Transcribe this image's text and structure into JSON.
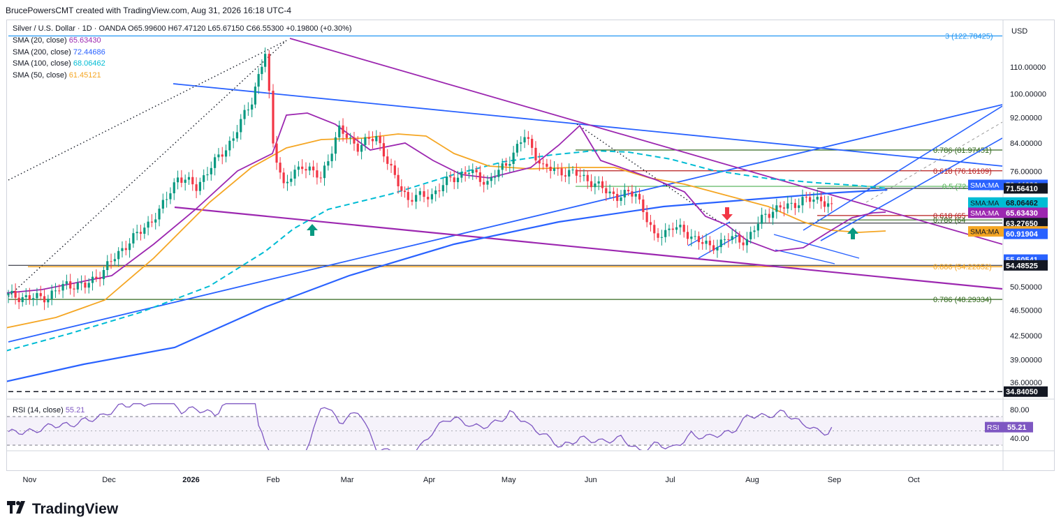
{
  "header": {
    "attribution": "BrucePowersCMT created with TradingView.com, Aug 31, 2026 16:18 UTC-4"
  },
  "legend": {
    "symbol": "Silver / U.S. Dollar · 1D · OANDA",
    "ohlc": "O65.99600 H67.47120 L65.67150 C66.55300 +0.19800 (+0.30%)",
    "indicators": [
      {
        "label": "SMA (20, close)",
        "value": "65.63430",
        "color": "#9c27b0"
      },
      {
        "label": "SMA (200, close)",
        "value": "72.44686",
        "color": "#2962ff"
      },
      {
        "label": "SMA (100, close)",
        "value": "68.06462",
        "color": "#00bcd4"
      },
      {
        "label": "SMA (50, close)",
        "value": "61.45121",
        "color": "#f5a623"
      }
    ]
  },
  "axis": {
    "currency": "USD",
    "price_ticks": [
      "110.00000",
      "100.00000",
      "92.00000",
      "84.00000",
      "76.00000",
      "50.50000",
      "46.50000",
      "42.50000",
      "39.00000",
      "36.00000"
    ],
    "months": [
      "Nov",
      "Dec",
      "2026",
      "Feb",
      "Mar",
      "Apr",
      "May",
      "Jun",
      "Jul",
      "Aug",
      "Sep",
      "Oct"
    ],
    "rsi_ticks": [
      "80.00",
      "40.00"
    ]
  },
  "price_tags": [
    {
      "text": "SMA:MA",
      "value": "72.44686",
      "bg": "#2962ff",
      "fg": "#ffffff"
    },
    {
      "text": "",
      "value": "71.56410",
      "bg": "#131722",
      "fg": "#ffffff"
    },
    {
      "text": "SMA:MA",
      "value": "68.06462",
      "bg": "#00bcd4",
      "fg": "#131722"
    },
    {
      "text": "SMA:MA",
      "value": "65.63430",
      "bg": "#9c27b0",
      "fg": "#ffffff"
    },
    {
      "text": "",
      "value": "63.27650",
      "bg": "#131722",
      "fg": "#ffffff"
    },
    {
      "text": "SMA:MA",
      "value": "61.45121",
      "bg": "#f5a623",
      "fg": "#131722"
    },
    {
      "text": "",
      "value": "60.91904",
      "bg": "#2962ff",
      "fg": "#ffffff"
    },
    {
      "text": "",
      "value": "55.60541",
      "bg": "#2962ff",
      "fg": "#ffffff"
    },
    {
      "text": "",
      "value": "54.48525",
      "bg": "#131722",
      "fg": "#ffffff"
    },
    {
      "text": "",
      "value": "34.84050",
      "bg": "#131722",
      "fg": "#ffffff"
    }
  ],
  "fib_labels": [
    {
      "text": "3 (122.78425)",
      "color": "#2196f3"
    },
    {
      "text": "0.786 (81.97451)",
      "color": "#33691e"
    },
    {
      "text": "0.618 (76.16109)",
      "color": "#b71c1c"
    },
    {
      "text": "0.5 (72.07785)",
      "color": "#4caf50"
    },
    {
      "text": "0.618 (65",
      "color": "#b71c1c"
    },
    {
      "text": "0.786 (64",
      "color": "#33691e"
    },
    {
      "text": "0.886 (54.22852)",
      "color": "#f5a623"
    },
    {
      "text": "0.786 (48.29334)",
      "color": "#33691e"
    }
  ],
  "rsi": {
    "label": "RSI (14, close)",
    "value": "55.21",
    "tag_text": "RSI",
    "color": "#7e57c2"
  },
  "footer": {
    "brand": "TradingView"
  },
  "colors": {
    "up": "#089981",
    "down": "#f23645",
    "purple": "#9c27b0",
    "blue": "#2962ff",
    "cyan": "#00bcd4",
    "orange": "#f5a623"
  },
  "chart_data": {
    "type": "candlestick",
    "title": "Silver / U.S. Dollar · 1D · OANDA",
    "y_unit": "USD",
    "x_range": [
      "2025-10-24",
      "2026-10-15"
    ],
    "close_path": [
      [
        "2025-10-24",
        49.0
      ],
      [
        "2025-11-01",
        48.5
      ],
      [
        "2025-11-08",
        48.8
      ],
      [
        "2025-11-15",
        51.0
      ],
      [
        "2025-11-22",
        50.6
      ],
      [
        "2025-11-29",
        53.5
      ],
      [
        "2025-12-06",
        57.8
      ],
      [
        "2025-12-13",
        61.5
      ],
      [
        "2025-12-20",
        65.8
      ],
      [
        "2025-12-27",
        74.5
      ],
      [
        "2026-01-03",
        72.0
      ],
      [
        "2026-01-10",
        78.5
      ],
      [
        "2026-01-17",
        85.5
      ],
      [
        "2026-01-24",
        98.0
      ],
      [
        "2026-01-29",
        115.0
      ],
      [
        "2026-02-01",
        84.0
      ],
      [
        "2026-02-05",
        72.0
      ],
      [
        "2026-02-12",
        78.0
      ],
      [
        "2026-02-19",
        74.0
      ],
      [
        "2026-02-26",
        88.0
      ],
      [
        "2026-03-05",
        83.0
      ],
      [
        "2026-03-12",
        86.0
      ],
      [
        "2026-03-19",
        74.0
      ],
      [
        "2026-03-24",
        69.0
      ],
      [
        "2026-04-02",
        70.0
      ],
      [
        "2026-04-09",
        74.0
      ],
      [
        "2026-04-16",
        76.0
      ],
      [
        "2026-04-23",
        73.0
      ],
      [
        "2026-04-30",
        78.0
      ],
      [
        "2026-05-07",
        86.0
      ],
      [
        "2026-05-14",
        77.0
      ],
      [
        "2026-05-21",
        76.0
      ],
      [
        "2026-05-28",
        75.0
      ],
      [
        "2026-06-04",
        72.0
      ],
      [
        "2026-06-11",
        69.5
      ],
      [
        "2026-06-18",
        70.5
      ],
      [
        "2026-06-25",
        60.0
      ],
      [
        "2026-07-02",
        62.5
      ],
      [
        "2026-07-09",
        60.5
      ],
      [
        "2026-07-16",
        58.0
      ],
      [
        "2026-07-23",
        60.0
      ],
      [
        "2026-07-30",
        59.5
      ],
      [
        "2026-08-06",
        65.5
      ],
      [
        "2026-08-13",
        67.0
      ],
      [
        "2026-08-20",
        68.5
      ],
      [
        "2026-08-27",
        69.0
      ],
      [
        "2026-08-31",
        66.55
      ]
    ],
    "sma": [
      {
        "name": "SMA (20, close)",
        "last": 65.6343
      },
      {
        "name": "SMA (200, close)",
        "last": 72.44686
      },
      {
        "name": "SMA (100, close)",
        "last": 68.06462
      },
      {
        "name": "SMA (50, close)",
        "last": 61.45121
      }
    ],
    "horizontal_levels": [
      122.78425,
      81.97451,
      76.16109,
      72.07785,
      71.5641,
      65.0,
      64.0,
      63.2765,
      54.48525,
      54.22852,
      48.29334,
      34.8405
    ],
    "rsi": {
      "period": 14,
      "last": 55.21,
      "bands": [
        70,
        30
      ]
    }
  }
}
